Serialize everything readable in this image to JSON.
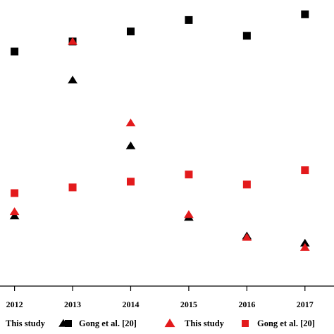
{
  "chart_data": {
    "type": "scatter",
    "x_ticks": [
      "2012",
      "2013",
      "2014",
      "2015",
      "2016",
      "2017"
    ],
    "xlim": [
      2011.75,
      2017.5
    ],
    "ylim": [
      0,
      10
    ],
    "series": [
      {
        "marker": "square",
        "color": "#000000",
        "x": [
          2012,
          2013,
          2014,
          2015,
          2016,
          2017
        ],
        "y": [
          8.2,
          8.55,
          8.9,
          9.3,
          8.75,
          9.5
        ]
      },
      {
        "marker": "triangle",
        "color": "#000000",
        "x": [
          2012,
          2013,
          2014,
          2015,
          2016,
          2017
        ],
        "y": [
          2.45,
          7.2,
          4.9,
          2.4,
          1.75,
          1.5
        ]
      },
      {
        "marker": "triangle",
        "color": "#e31a1c",
        "x": [
          2012,
          2013,
          2014,
          2015,
          2016,
          2017
        ],
        "y": [
          2.6,
          8.55,
          5.7,
          2.5,
          1.7,
          1.35
        ]
      },
      {
        "marker": "square",
        "color": "#e31a1c",
        "x": [
          2012,
          2013,
          2014,
          2015,
          2016,
          2017
        ],
        "y": [
          3.25,
          3.45,
          3.65,
          3.9,
          3.55,
          4.05
        ]
      }
    ],
    "legend": {
      "placement": "bottom",
      "entries": [
        {
          "label": "This study",
          "marker": "triangle",
          "color": "#000000"
        },
        {
          "label": "Gong et al. [20]",
          "marker": "square",
          "color": "#000000"
        },
        {
          "label": "This study",
          "marker": "triangle",
          "color": "#e31a1c"
        },
        {
          "label": "Gong et al. [20]",
          "marker": "square",
          "color": "#e31a1c"
        }
      ]
    },
    "grid": false
  }
}
